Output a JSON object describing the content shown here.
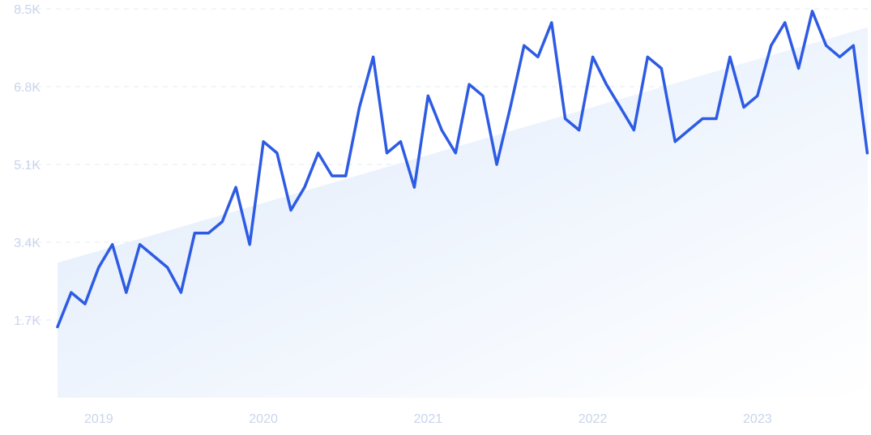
{
  "chart_data": {
    "type": "line",
    "title": "",
    "xlabel": "",
    "ylabel": "",
    "ylim": [
      0,
      8500
    ],
    "xlim": [
      2018.75,
      2023.67
    ],
    "grid": true,
    "y_ticks": [
      1700,
      3400,
      5100,
      6800,
      8500
    ],
    "y_tick_labels": [
      "1.7K",
      "3.4K",
      "5.1K",
      "6.8K",
      "8.5K"
    ],
    "x_ticks": [
      2019,
      2020,
      2021,
      2022,
      2023
    ],
    "x_tick_labels": [
      "2019",
      "2020",
      "2021",
      "2022",
      "2023"
    ],
    "x": [
      2018.75,
      2018.833,
      2018.917,
      2019.0,
      2019.083,
      2019.167,
      2019.25,
      2019.333,
      2019.417,
      2019.5,
      2019.583,
      2019.667,
      2019.75,
      2019.833,
      2019.917,
      2020.0,
      2020.083,
      2020.167,
      2020.25,
      2020.333,
      2020.417,
      2020.5,
      2020.583,
      2020.667,
      2020.75,
      2020.833,
      2020.917,
      2021.0,
      2021.083,
      2021.167,
      2021.25,
      2021.333,
      2021.417,
      2021.5,
      2021.583,
      2021.667,
      2021.75,
      2021.833,
      2021.917,
      2022.0,
      2022.083,
      2022.167,
      2022.25,
      2022.333,
      2022.417,
      2022.5,
      2022.583,
      2022.667,
      2022.75,
      2022.833,
      2022.917,
      2023.0,
      2023.083,
      2023.167,
      2023.25,
      2023.333,
      2023.417,
      2023.5,
      2023.583,
      2023.667
    ],
    "values": [
      1550,
      2300,
      2050,
      2850,
      3350,
      2300,
      3350,
      3100,
      2850,
      2300,
      3600,
      3600,
      3850,
      4600,
      3350,
      5600,
      5350,
      4100,
      4600,
      5350,
      4850,
      4850,
      6350,
      7450,
      5350,
      5600,
      4600,
      6600,
      5850,
      5350,
      6850,
      6600,
      5100,
      6350,
      7700,
      7450,
      8200,
      6100,
      5850,
      7450,
      6850,
      6350,
      5850,
      7450,
      7200,
      5600,
      5850,
      6100,
      6100,
      7450,
      6350,
      6600,
      7700,
      8200,
      7200,
      8450,
      7700,
      7450,
      7700,
      5350
    ],
    "trend": [
      2950,
      8100
    ],
    "series": [
      {
        "values": "values",
        "color": "#2d5be3"
      }
    ],
    "colors": {
      "line": "#2d5be3",
      "area_start": "#deeafb",
      "area_end": "#ffffff",
      "grid": "#e3e8f3",
      "tick": "#c9d4ec"
    }
  }
}
